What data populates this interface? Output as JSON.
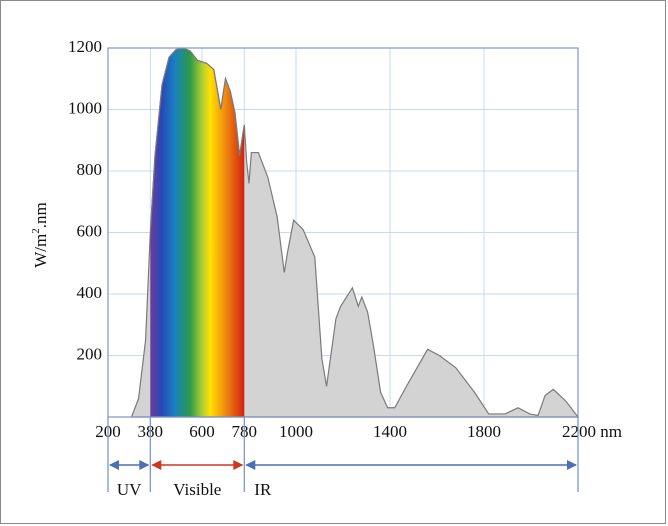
{
  "chart_data": {
    "type": "area",
    "x": [
      300,
      330,
      360,
      380,
      400,
      430,
      460,
      490,
      520,
      550,
      580,
      620,
      650,
      680,
      700,
      720,
      740,
      760,
      780,
      790,
      800,
      810,
      840,
      880,
      920,
      950,
      965,
      990,
      1030,
      1080,
      1110,
      1130,
      1170,
      1190,
      1240,
      1265,
      1280,
      1305,
      1330,
      1360,
      1390,
      1420,
      1470,
      1560,
      1610,
      1680,
      1760,
      1820,
      1890,
      1945,
      1995,
      2030,
      2060,
      2095,
      2150,
      2200
    ],
    "values": [
      0,
      60,
      250,
      600,
      850,
      1080,
      1170,
      1195,
      1200,
      1190,
      1160,
      1150,
      1130,
      1000,
      1100,
      1060,
      990,
      850,
      950,
      830,
      760,
      860,
      860,
      780,
      650,
      470,
      540,
      640,
      610,
      520,
      190,
      100,
      320,
      360,
      420,
      360,
      390,
      340,
      230,
      80,
      30,
      30,
      100,
      220,
      200,
      160,
      80,
      10,
      10,
      30,
      10,
      5,
      70,
      90,
      50,
      0
    ],
    "color": "#d3d3d3",
    "line_color": "#7a7a7a",
    "ylabel": {
      "base": "W/m",
      "sup": "2",
      "rest": ".nm"
    },
    "xlim": [
      200,
      2200
    ],
    "ylim": [
      0,
      1200
    ],
    "xticks": [
      200,
      380,
      600,
      780,
      1000,
      1400,
      1800,
      {
        "value": 2200,
        "label": "2200 nm"
      }
    ],
    "yticks": [
      200,
      400,
      600,
      800,
      1000,
      1200
    ],
    "grid": true,
    "regions": [
      {
        "name": "UV",
        "from": 200,
        "to": 380,
        "color": "#4a6fb5"
      },
      {
        "name": "Visible",
        "from": 380,
        "to": 780,
        "color": "#d0351f"
      },
      {
        "name": "IR",
        "from": 780,
        "to": 2200,
        "color": "#4a6fb5"
      }
    ]
  }
}
